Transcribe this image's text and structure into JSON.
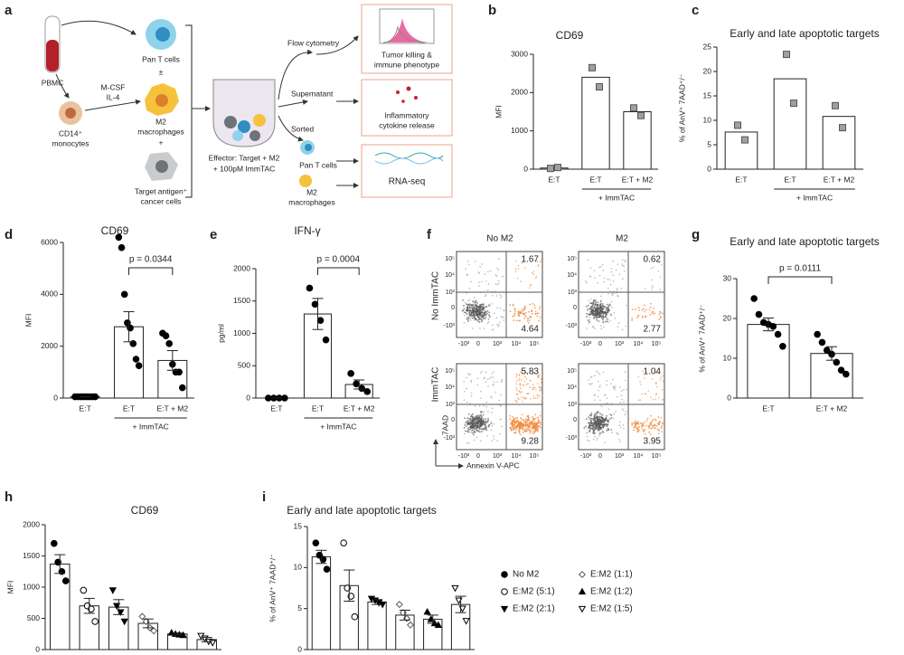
{
  "schematic": {
    "panel": "a",
    "pbmc": "PBMC",
    "pan_t": "Pan T cells",
    "plus_minus": "±",
    "cytokines": [
      "M-CSF",
      "IL-4"
    ],
    "monocytes": [
      "CD14⁺",
      "monocytes"
    ],
    "m2": [
      "M2",
      "macrophages"
    ],
    "plus": "+",
    "target": [
      "Target antigen⁺",
      "cancer cells"
    ],
    "effector": [
      "Effector: Target + M2",
      "+ 100pM ImmTAC"
    ],
    "flow": "Flow cytometry",
    "supernatant": "Supernatant",
    "sorted": "Sorted",
    "sorted_t": "Pan T cells",
    "sorted_m2": [
      "M2",
      "macrophages"
    ],
    "box1": [
      "Tumor killing &",
      "immune phenotype"
    ],
    "box2": [
      "Inflammatory",
      "cytokine release"
    ],
    "box3": "RNA-seq"
  },
  "flow": {
    "panel": "f",
    "columns": [
      "No M2",
      "M2"
    ],
    "rows": [
      "No ImmTAC",
      "ImmTAC"
    ],
    "quadrants": [
      [
        1.67,
        4.64
      ],
      [
        0.62,
        2.77
      ],
      [
        5.83,
        9.28
      ],
      [
        1.04,
        3.95
      ]
    ],
    "yticks": [
      "10⁵",
      "10⁴",
      "10³",
      "0",
      "-10³"
    ],
    "xticks": [
      "-10³",
      "0",
      "10³",
      "10⁴",
      "10⁵"
    ],
    "ylabel": "7AAD",
    "xlabel": "Annexin V-APC"
  },
  "chart_data": [
    {
      "type": "bar",
      "panel": "b",
      "title": "CD69",
      "ylabel": "MFI",
      "categories": [
        "E:T",
        "E:T",
        "E:T + M2"
      ],
      "group_label": "+ ImmTAC",
      "values": [
        30,
        2400,
        1500
      ],
      "points": [
        [
          20,
          45
        ],
        [
          2650,
          2150
        ],
        [
          1600,
          1400
        ]
      ],
      "marker": "square",
      "marker_color": "#a0a0a0",
      "ylim": [
        0,
        3000
      ],
      "yticks": [
        0,
        1000,
        2000,
        3000
      ]
    },
    {
      "type": "bar",
      "panel": "c",
      "title": "Early and late apoptotic targets",
      "ylabel": "% of AnV⁺ 7AAD⁺/⁻",
      "categories": [
        "E:T",
        "E:T",
        "E:T + M2"
      ],
      "group_label": "+ ImmTAC",
      "values": [
        7.6,
        18.5,
        10.8
      ],
      "points": [
        [
          9,
          6
        ],
        [
          23.5,
          13.5
        ],
        [
          13,
          8.5
        ]
      ],
      "marker": "square",
      "marker_color": "#a0a0a0",
      "ylim": [
        0,
        25
      ],
      "yticks": [
        0,
        5,
        10,
        15,
        20,
        25
      ]
    },
    {
      "type": "bar",
      "panel": "d",
      "title": "CD69",
      "ylabel": "MFI",
      "categories": [
        "E:T",
        "E:T",
        "E:T + M2"
      ],
      "group_label": "+ ImmTAC",
      "annotation": "p = 0.0344",
      "values": [
        50,
        2750,
        1450
      ],
      "errors": [
        0,
        580,
        380
      ],
      "points": [
        [
          50,
          50,
          50,
          50,
          50,
          50,
          50,
          50
        ],
        [
          6200,
          5800,
          4000,
          2900,
          2700,
          2100,
          1500,
          1250
        ],
        [
          2500,
          2400,
          2100,
          1300,
          1000,
          1000,
          400
        ]
      ],
      "marker": "circle",
      "marker_color": "#000000",
      "ylim": [
        0,
        6000
      ],
      "yticks": [
        0,
        2000,
        4000,
        6000
      ]
    },
    {
      "type": "bar",
      "panel": "e",
      "title": "IFN-γ",
      "ylabel": "pg/ml",
      "categories": [
        "E:T",
        "E:T",
        "E:T + M2"
      ],
      "group_label": "+ ImmTAC",
      "annotation": "p = 0.0004",
      "values": [
        0,
        1300,
        210
      ],
      "errors": [
        0,
        240,
        70
      ],
      "points": [
        [
          0,
          0,
          0,
          0
        ],
        [
          1700,
          1450,
          1200,
          900
        ],
        [
          380,
          220,
          150,
          100
        ]
      ],
      "marker": "circle",
      "marker_color": "#000000",
      "ylim": [
        0,
        2000
      ],
      "yticks": [
        0,
        500,
        1000,
        1500,
        2000
      ]
    },
    {
      "type": "bar",
      "panel": "g",
      "title": "Early and late apoptotic targets",
      "ylabel": "% of AnV⁺ 7AAD⁺/⁻",
      "categories": [
        "E:T",
        "E:T + M2"
      ],
      "annotation": "p = 0.0111",
      "values": [
        18.5,
        11.2
      ],
      "errors": [
        1.6,
        1.7
      ],
      "points": [
        [
          25,
          21,
          19,
          18.5,
          18,
          16,
          13
        ],
        [
          16,
          14,
          12,
          11,
          9,
          7,
          6
        ]
      ],
      "marker": "circle",
      "marker_color": "#000000",
      "ylim": [
        0,
        30
      ],
      "yticks": [
        0,
        10,
        20,
        30
      ]
    },
    {
      "type": "bar",
      "panel": "h",
      "title": "CD69",
      "ylabel": "MFI",
      "categories": [
        null,
        null,
        null,
        null,
        null,
        null
      ],
      "values": [
        1370,
        700,
        680,
        420,
        250,
        160
      ],
      "errors": [
        150,
        120,
        120,
        70,
        15,
        35
      ],
      "points": [
        [
          1700,
          1400,
          1250,
          1100
        ],
        [
          950,
          700,
          650,
          450
        ],
        [
          950,
          700,
          600,
          450
        ],
        [
          530,
          450,
          350,
          300
        ],
        [
          270,
          250,
          240,
          230
        ],
        [
          220,
          180,
          130,
          110
        ]
      ],
      "markers": [
        "circle",
        "circle-open",
        "triangle-down",
        "diamond-open",
        "triangle",
        "triangle-down-open"
      ],
      "marker_color": "#000000",
      "ylim": [
        0,
        2000
      ],
      "yticks": [
        0,
        500,
        1000,
        1500,
        2000
      ]
    },
    {
      "type": "bar",
      "panel": "i",
      "title": "Early and late apoptotic targets",
      "ylabel": "% of AnV⁺ 7AAD⁺/⁻",
      "categories": [
        null,
        null,
        null,
        null,
        null,
        null
      ],
      "values": [
        11.3,
        7.8,
        5.8,
        4.2,
        3.7,
        5.5
      ],
      "errors": [
        0.8,
        1.9,
        0.3,
        0.6,
        0.5,
        1.0
      ],
      "points": [
        [
          13,
          11.5,
          11,
          9.8
        ],
        [
          13,
          7.5,
          6.5,
          4
        ],
        [
          6.2,
          6,
          5.7,
          5.5
        ],
        [
          5.5,
          4.5,
          3.8,
          3
        ],
        [
          4.6,
          3.7,
          3.2,
          3
        ],
        [
          7.5,
          6,
          5,
          3.5
        ]
      ],
      "markers": [
        "circle",
        "circle-open",
        "triangle-down",
        "diamond-open",
        "triangle",
        "triangle-down-open"
      ],
      "marker_color": "#000000",
      "legend": [
        "No M2",
        "E:M2 (5:1)",
        "E:M2 (2:1)",
        "E:M2 (1:1)",
        "E:M2 (1:2)",
        "E:M2 (1:5)"
      ],
      "ylim": [
        0,
        15
      ],
      "yticks": [
        0,
        5,
        10,
        15
      ]
    }
  ]
}
